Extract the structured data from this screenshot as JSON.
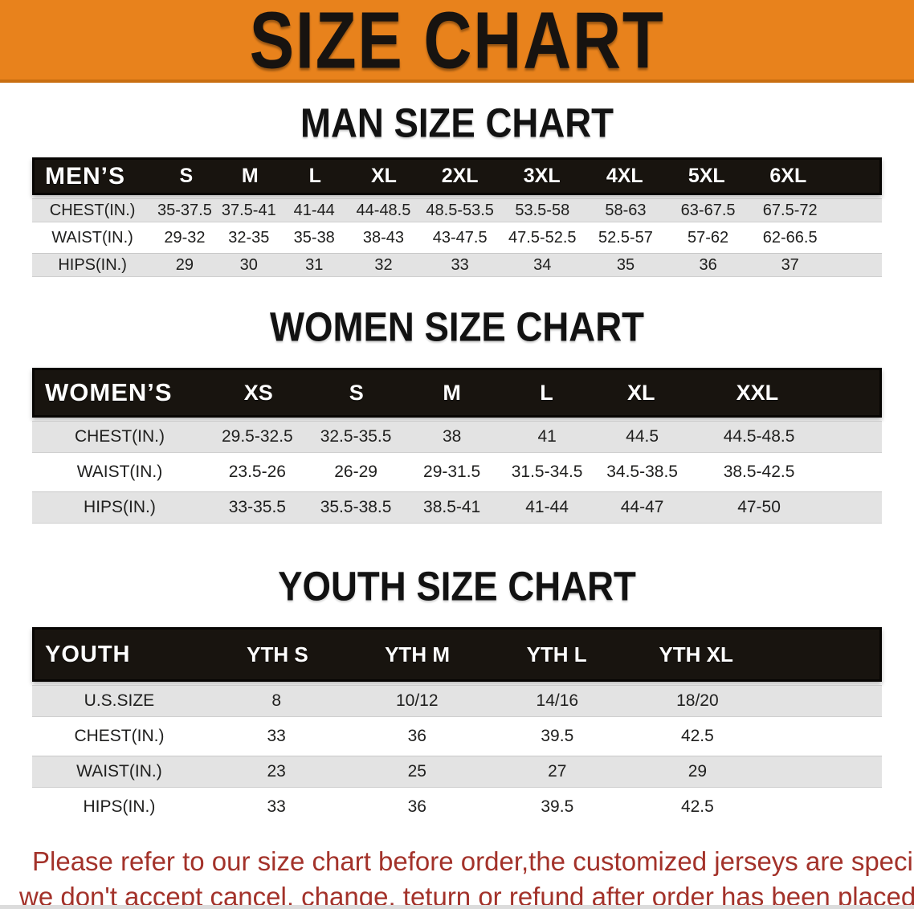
{
  "banner": {
    "title": "SIZE CHART"
  },
  "colors": {
    "banner_orange": "#e8821c",
    "banner_edge": "#c96e10",
    "header_bar_black": "#18140f",
    "row_gray": "#e3e3e3",
    "note_red": "#a3322a"
  },
  "sections": [
    {
      "heading": "MAN SIZE CHART",
      "table": {
        "header_label": "MEN’S",
        "columns": [
          "S",
          "M",
          "L",
          "XL",
          "2XL",
          "3XL",
          "4XL",
          "5XL",
          "6XL"
        ],
        "rows": [
          {
            "label": "CHEST(IN.)",
            "values": [
              "35-37.5",
              "37.5-41",
              "41-44",
              "44-48.5",
              "48.5-53.5",
              "53.5-58",
              "58-63",
              "63-67.5",
              "67.5-72"
            ]
          },
          {
            "label": "WAIST(IN.)",
            "values": [
              "29-32",
              "32-35",
              "35-38",
              "38-43",
              "43-47.5",
              "47.5-52.5",
              "52.5-57",
              "57-62",
              "62-66.5"
            ]
          },
          {
            "label": "HIPS(IN.)",
            "values": [
              "29",
              "30",
              "31",
              "32",
              "33",
              "34",
              "35",
              "36",
              "37"
            ]
          }
        ]
      }
    },
    {
      "heading": "WOMEN SIZE CHART",
      "table": {
        "header_label": "WOMEN’S",
        "columns": [
          "XS",
          "S",
          "M",
          "L",
          "XL",
          "XXL"
        ],
        "rows": [
          {
            "label": "CHEST(IN.)",
            "values": [
              "29.5-32.5",
              "32.5-35.5",
              "38",
              "41",
              "44.5",
              "44.5-48.5"
            ]
          },
          {
            "label": "WAIST(IN.)",
            "values": [
              "23.5-26",
              "26-29",
              "29-31.5",
              "31.5-34.5",
              "34.5-38.5",
              "38.5-42.5"
            ]
          },
          {
            "label": "HIPS(IN.)",
            "values": [
              "33-35.5",
              "35.5-38.5",
              "38.5-41",
              "41-44",
              "44-47",
              "47-50"
            ]
          }
        ]
      }
    },
    {
      "heading": "YOUTH SIZE CHART",
      "table": {
        "header_label": "YOUTH",
        "columns": [
          "YTH S",
          "YTH M",
          "YTH L",
          "YTH XL"
        ],
        "rows": [
          {
            "label": "U.S.SIZE",
            "values": [
              "8",
              "10/12",
              "14/16",
              "18/20"
            ]
          },
          {
            "label": "CHEST(IN.)",
            "values": [
              "33",
              "36",
              "39.5",
              "42.5"
            ]
          },
          {
            "label": "WAIST(IN.)",
            "values": [
              "23",
              "25",
              "27",
              "29"
            ]
          },
          {
            "label": "HIPS(IN.)",
            "values": [
              "33",
              "36",
              "39.5",
              "42.5"
            ]
          }
        ]
      }
    }
  ],
  "footer": {
    "line1": "Please refer to our size chart before order,the customized jerseys are special products,",
    "line2": "we don't accept cancel, change, teturn or refund after order has been placed!"
  }
}
